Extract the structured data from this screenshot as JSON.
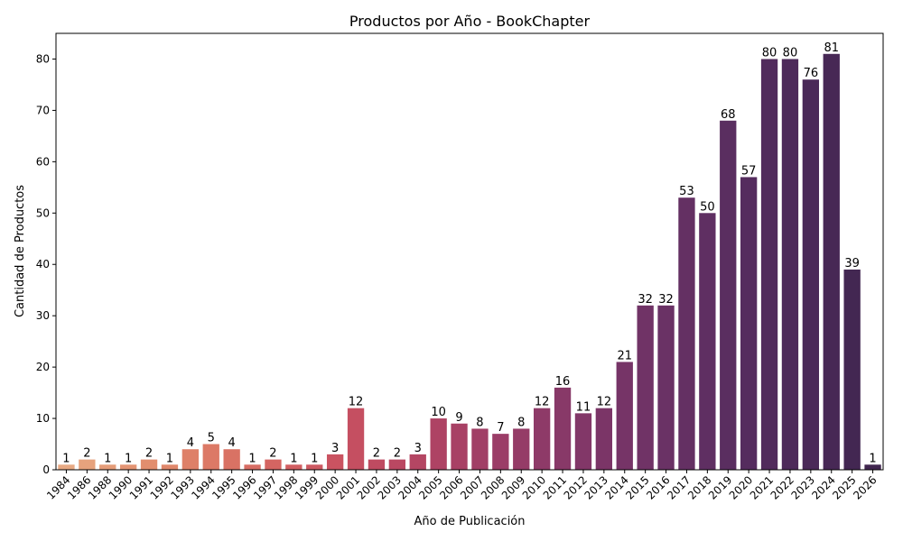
{
  "chart_data": {
    "type": "bar",
    "title": "Productos por Año - BookChapter",
    "xlabel": "Año de Publicación",
    "ylabel": "Cantidad de Productos",
    "ylim": [
      0,
      85
    ],
    "yticks": [
      0,
      10,
      20,
      30,
      40,
      50,
      60,
      70,
      80
    ],
    "grid": false,
    "categories": [
      "1984",
      "1986",
      "1988",
      "1990",
      "1991",
      "1992",
      "1993",
      "1994",
      "1995",
      "1996",
      "1997",
      "1998",
      "1999",
      "2000",
      "2001",
      "2002",
      "2003",
      "2004",
      "2005",
      "2006",
      "2007",
      "2008",
      "2009",
      "2010",
      "2011",
      "2012",
      "2013",
      "2014",
      "2015",
      "2016",
      "2017",
      "2018",
      "2019",
      "2020",
      "2021",
      "2022",
      "2023",
      "2024",
      "2025",
      "2026"
    ],
    "values": [
      1,
      2,
      1,
      1,
      2,
      1,
      4,
      5,
      4,
      1,
      2,
      1,
      1,
      3,
      12,
      2,
      2,
      3,
      10,
      9,
      8,
      7,
      8,
      12,
      16,
      11,
      12,
      21,
      32,
      32,
      53,
      50,
      68,
      57,
      80,
      80,
      76,
      81,
      39,
      1
    ],
    "colors": [
      "#e8a983",
      "#e6a27d",
      "#e59c78",
      "#e49473",
      "#e28e6e",
      "#e0876b",
      "#de8068",
      "#dc7966",
      "#d97264",
      "#d76c63",
      "#d46562",
      "#d15e61",
      "#cd5961",
      "#ca5361",
      "#c54f61",
      "#bf4b61",
      "#ba4862",
      "#b44663",
      "#ae4364",
      "#a84165",
      "#a13f66",
      "#9b3d67",
      "#953c67",
      "#8e3a68",
      "#883968",
      "#823768",
      "#7b3567",
      "#763467",
      "#703366",
      "#6a3265",
      "#643063",
      "#5f2f62",
      "#5a2e60",
      "#552c5e",
      "#512b5c",
      "#4d2a5a",
      "#4a2958",
      "#472855",
      "#432752",
      "#40254f"
    ]
  }
}
